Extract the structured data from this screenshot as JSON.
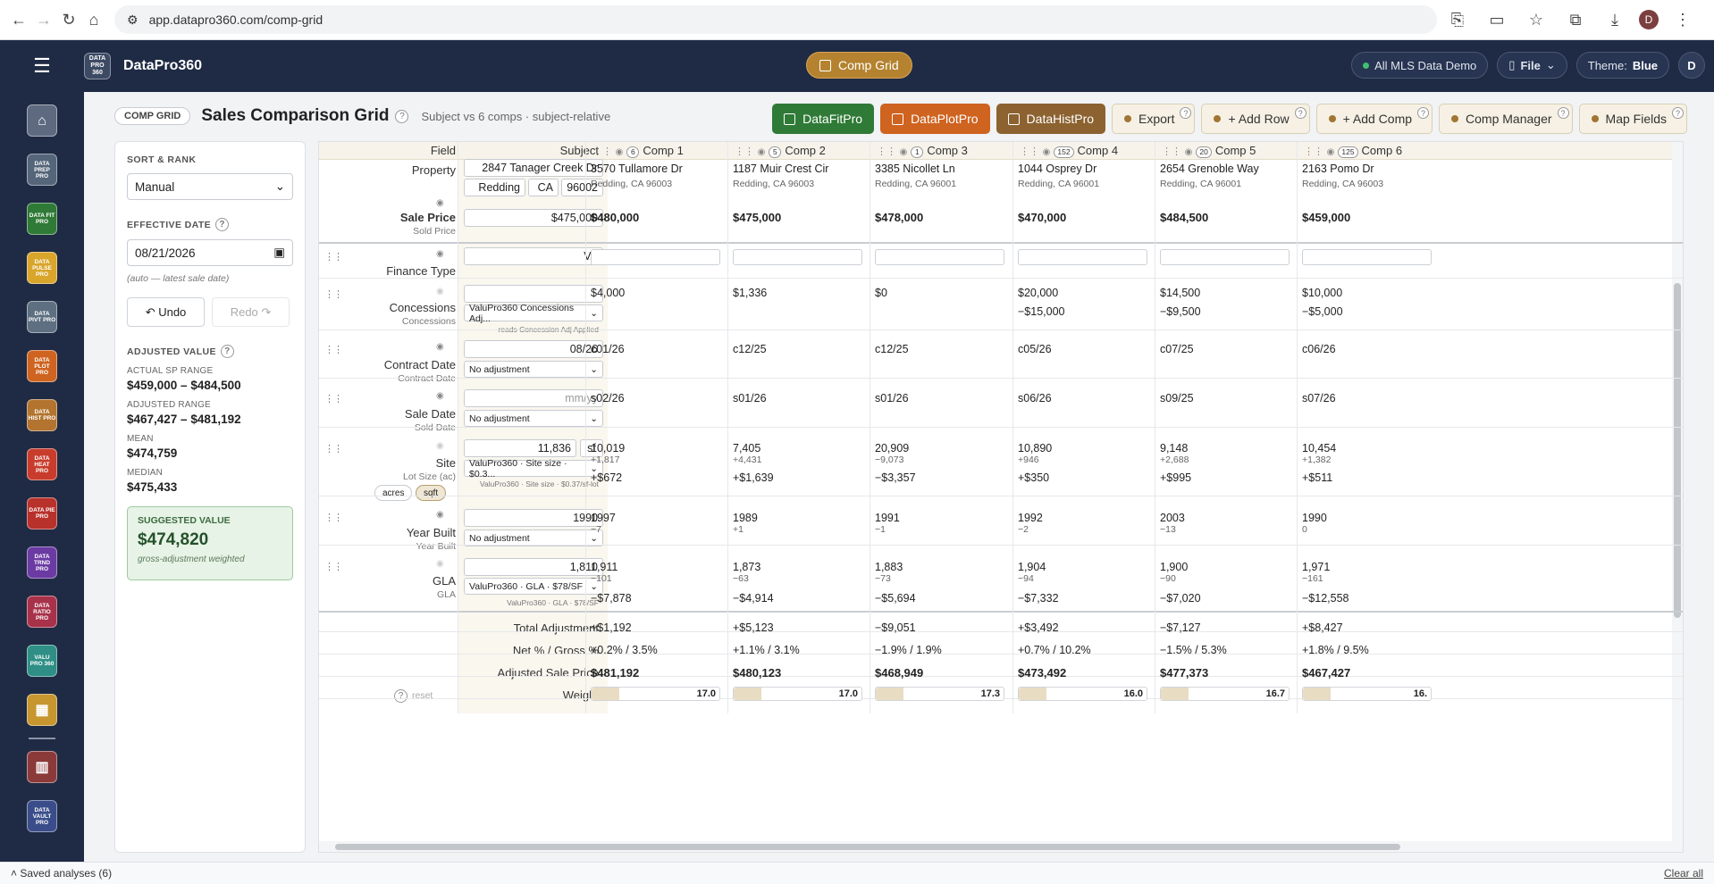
{
  "browser": {
    "url": "app.datapro360.com/comp-grid",
    "profile": "D"
  },
  "header": {
    "logo_text": "DATA PRO 360",
    "brand": "DataPro360",
    "active_tool": "Comp Grid",
    "mls": "All MLS Data Demo",
    "file_menu": "File",
    "theme_label": "Theme:",
    "theme_value": "Blue",
    "user_initial": "D"
  },
  "rail": [
    {
      "name": "home",
      "text": "⌂",
      "color": "#5d6a80"
    },
    {
      "name": "data-prep",
      "text": "DATA PREP PRO",
      "color": "#55657a"
    },
    {
      "name": "data-fit",
      "text": "DATA FIT PRO",
      "color": "#2f7a36"
    },
    {
      "name": "data-pulse",
      "text": "DATA PULSE PRO",
      "color": "#d9a52b"
    },
    {
      "name": "data-pivot",
      "text": "DATA PIVT PRO",
      "color": "#5d6f80"
    },
    {
      "name": "data-plot",
      "text": "DATA PLOT PRO",
      "color": "#cf6320"
    },
    {
      "name": "data-hist",
      "text": "DATA HIST PRO",
      "color": "#b3742f"
    },
    {
      "name": "data-heat",
      "text": "DATA HEAT PRO",
      "color": "#c83c2c"
    },
    {
      "name": "data-pie",
      "text": "DATA PIE PRO",
      "color": "#b8312b"
    },
    {
      "name": "data-trend",
      "text": "DATA TRND PRO",
      "color": "#6b3aa3"
    },
    {
      "name": "data-ratio",
      "text": "DATA RATIO PRO",
      "color": "#a8324a"
    },
    {
      "name": "valu-pro",
      "text": "VALU PRO 360",
      "color": "#2f8f86"
    },
    {
      "name": "comp-grid",
      "text": "▦",
      "color": "#c7962f"
    },
    {
      "name": "report",
      "text": "▥",
      "color": "#8b3a3a"
    },
    {
      "name": "data-vault",
      "text": "DATA VAULT PRO",
      "color": "#3a4d8a"
    }
  ],
  "title": {
    "tag": "COMP GRID",
    "heading": "Sales Comparison Grid",
    "subtitle": "Subject vs 6 comps · subject-relative",
    "buttons": {
      "fit": "DataFitPro",
      "plot": "DataPlotPro",
      "hist": "DataHistPro",
      "export": "Export",
      "add_row": "+ Add Row",
      "add_comp": "+ Add Comp",
      "comp_manager": "Comp Manager",
      "map_fields": "Map Fields"
    }
  },
  "side": {
    "sort_label": "SORT & RANK",
    "sort_value": "Manual",
    "eff_label": "EFFECTIVE DATE",
    "eff_value": "08/21/2026",
    "eff_hint": "(auto — latest sale date)",
    "undo": "↶ Undo",
    "redo": "Redo ↷",
    "adj_label": "ADJUSTED VALUE",
    "actual_label": "ACTUAL SP RANGE",
    "actual_value": "$459,000 – $484,500",
    "adjr_label": "ADJUSTED RANGE",
    "adjr_value": "$467,427 – $481,192",
    "mean_label": "MEAN",
    "mean_value": "$474,759",
    "median_label": "MEDIAN",
    "median_value": "$475,433",
    "suggested_label": "SUGGESTED VALUE",
    "suggested_value": "$474,820",
    "suggested_note": "gross-adjustment weighted"
  },
  "grid": {
    "field_header": "Field",
    "subject_header": "Subject",
    "comps": [
      {
        "label": "Comp 1",
        "badge": "6",
        "addr": "3570 Tullamore Dr",
        "city": "Redding, CA 96003",
        "price": "$480,000",
        "conc": "$4,000",
        "conc_adj": "",
        "contract": "c01/26",
        "sale": "s02/26",
        "site": "10,019",
        "site_diff": "+1,817",
        "site_adj": "+$672",
        "yb": "1997",
        "yb_diff": "−7",
        "gla": "1,911",
        "gla_diff": "−101",
        "gla_adj": "−$7,878",
        "total": "+$1,192",
        "netgross": "+0.2% / 3.5%",
        "adjusted": "$481,192",
        "weight": "17.0"
      },
      {
        "label": "Comp 2",
        "badge": "5",
        "addr": "1187 Muir Crest Cir",
        "city": "Redding, CA 96003",
        "price": "$475,000",
        "conc": "$1,336",
        "conc_adj": "",
        "contract": "c12/25",
        "sale": "s01/26",
        "site": "7,405",
        "site_diff": "+4,431",
        "site_adj": "+$1,639",
        "yb": "1989",
        "yb_diff": "+1",
        "gla": "1,873",
        "gla_diff": "−63",
        "gla_adj": "−$4,914",
        "total": "+$5,123",
        "netgross": "+1.1% / 3.1%",
        "adjusted": "$480,123",
        "weight": "17.0"
      },
      {
        "label": "Comp 3",
        "badge": "1",
        "addr": "3385 Nicollet Ln",
        "city": "Redding, CA 96001",
        "price": "$478,000",
        "conc": "$0",
        "conc_adj": "",
        "contract": "c12/25",
        "sale": "s01/26",
        "site": "20,909",
        "site_diff": "−9,073",
        "site_adj": "−$3,357",
        "yb": "1991",
        "yb_diff": "−1",
        "gla": "1,883",
        "gla_diff": "−73",
        "gla_adj": "−$5,694",
        "total": "−$9,051",
        "netgross": "−1.9% / 1.9%",
        "adjusted": "$468,949",
        "weight": "17.3"
      },
      {
        "label": "Comp 4",
        "badge": "152",
        "addr": "1044 Osprey Dr",
        "city": "Redding, CA 96001",
        "price": "$470,000",
        "conc": "$20,000",
        "conc_adj": "−$15,000",
        "contract": "c05/26",
        "sale": "s06/26",
        "site": "10,890",
        "site_diff": "+946",
        "site_adj": "+$350",
        "yb": "1992",
        "yb_diff": "−2",
        "gla": "1,904",
        "gla_diff": "−94",
        "gla_adj": "−$7,332",
        "total": "+$3,492",
        "netgross": "+0.7% / 10.2%",
        "adjusted": "$473,492",
        "weight": "16.0"
      },
      {
        "label": "Comp 5",
        "badge": "20",
        "addr": "2654 Grenoble Way",
        "city": "Redding, CA 96001",
        "price": "$484,500",
        "conc": "$14,500",
        "conc_adj": "−$9,500",
        "contract": "c07/25",
        "sale": "s09/25",
        "site": "9,148",
        "site_diff": "+2,688",
        "site_adj": "+$995",
        "yb": "2003",
        "yb_diff": "−13",
        "gla": "1,900",
        "gla_diff": "−90",
        "gla_adj": "−$7,020",
        "total": "−$7,127",
        "netgross": "−1.5% / 5.3%",
        "adjusted": "$477,373",
        "weight": "16.7"
      },
      {
        "label": "Comp 6",
        "badge": "125",
        "addr": "2163 Pomo Dr",
        "city": "Redding, CA 96003",
        "price": "$459,000",
        "conc": "$10,000",
        "conc_adj": "−$5,000",
        "contract": "c06/26",
        "sale": "s07/26",
        "site": "10,454",
        "site_diff": "+1,382",
        "site_adj": "+$511",
        "yb": "1990",
        "yb_diff": "0",
        "gla": "1,971",
        "gla_diff": "−161",
        "gla_adj": "−$12,558",
        "total": "+$8,427",
        "netgross": "+1.8% / 9.5%",
        "adjusted": "$467,427",
        "weight": "16."
      }
    ],
    "subject": {
      "street": "2847 Tanager Creek Dr",
      "city": "Redding",
      "state": "CA",
      "zip": "96002",
      "price": "$475,000",
      "finance": "VA",
      "conc_dd": "ValuPro360 Concessions Adj...",
      "conc_note": "reads Concession Adj Applied",
      "contract": "08/26",
      "contract_dd": "No adjustment",
      "sale_placeholder": "mm/yy",
      "sale_dd": "No adjustment",
      "site": "11,836",
      "site_unit": "sf",
      "site_dd": "ValuPro360 · Site size · $0.3...",
      "site_note": "ValuPro360 · Site size · $0.37/sf-lot",
      "unit_acres": "acres",
      "unit_sqft": "sqft",
      "yb": "1990",
      "yb_dd": "No adjustment",
      "gla": "1,810",
      "gla_dd": "ValuPro360 · GLA · $78/SF",
      "gla_note": "ValuPro360 · GLA · $78/SF"
    },
    "fields": {
      "property": "Property",
      "sale_price": "Sale Price",
      "sale_price_sub": "Sold Price",
      "finance": "Finance Type",
      "conc": "Concessions",
      "conc_sub": "Concessions",
      "contract": "Contract Date",
      "contract_sub": "Contract Date",
      "sale": "Sale Date",
      "sale_sub": "Sold Date",
      "site": "Site",
      "site_sub": "Lot Size (ac)",
      "yb": "Year Built",
      "yb_sub": "Year Built",
      "gla": "GLA",
      "gla_sub": "GLA",
      "total": "Total Adjustment",
      "netgross": "Net % / Gross %",
      "adjusted": "Adjusted Sale Price",
      "weight": "Weight",
      "weight_reset": "reset"
    }
  },
  "footer": {
    "saved": "Saved analyses (6)",
    "clear": "Clear all"
  }
}
